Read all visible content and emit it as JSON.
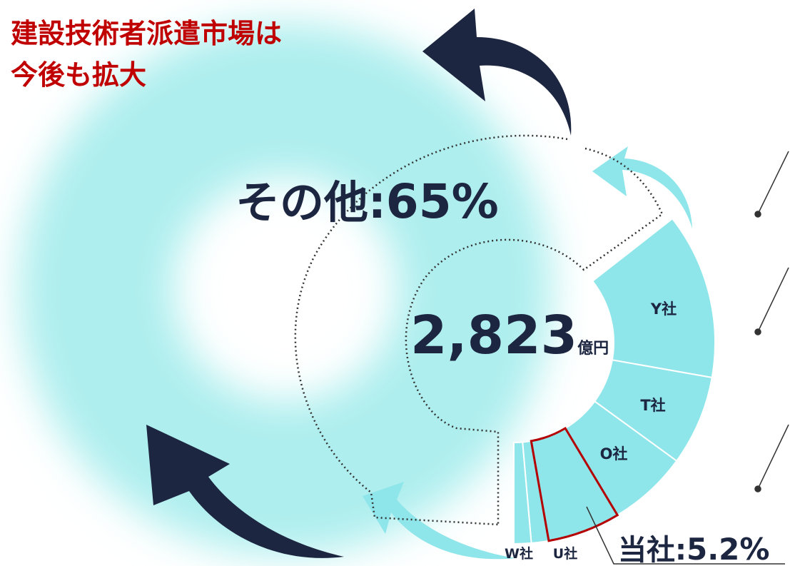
{
  "title": {
    "line1": "建設技術者派遣市場は",
    "line2": "今後も拡大"
  },
  "others": {
    "label": "その他:",
    "value": "65%"
  },
  "total": {
    "value": "2,823",
    "unit": "億円"
  },
  "segments": [
    "Y社",
    "T社",
    "O社",
    "U社",
    "W社"
  ],
  "own": {
    "label": "当社:",
    "value": "5.2%"
  }
}
